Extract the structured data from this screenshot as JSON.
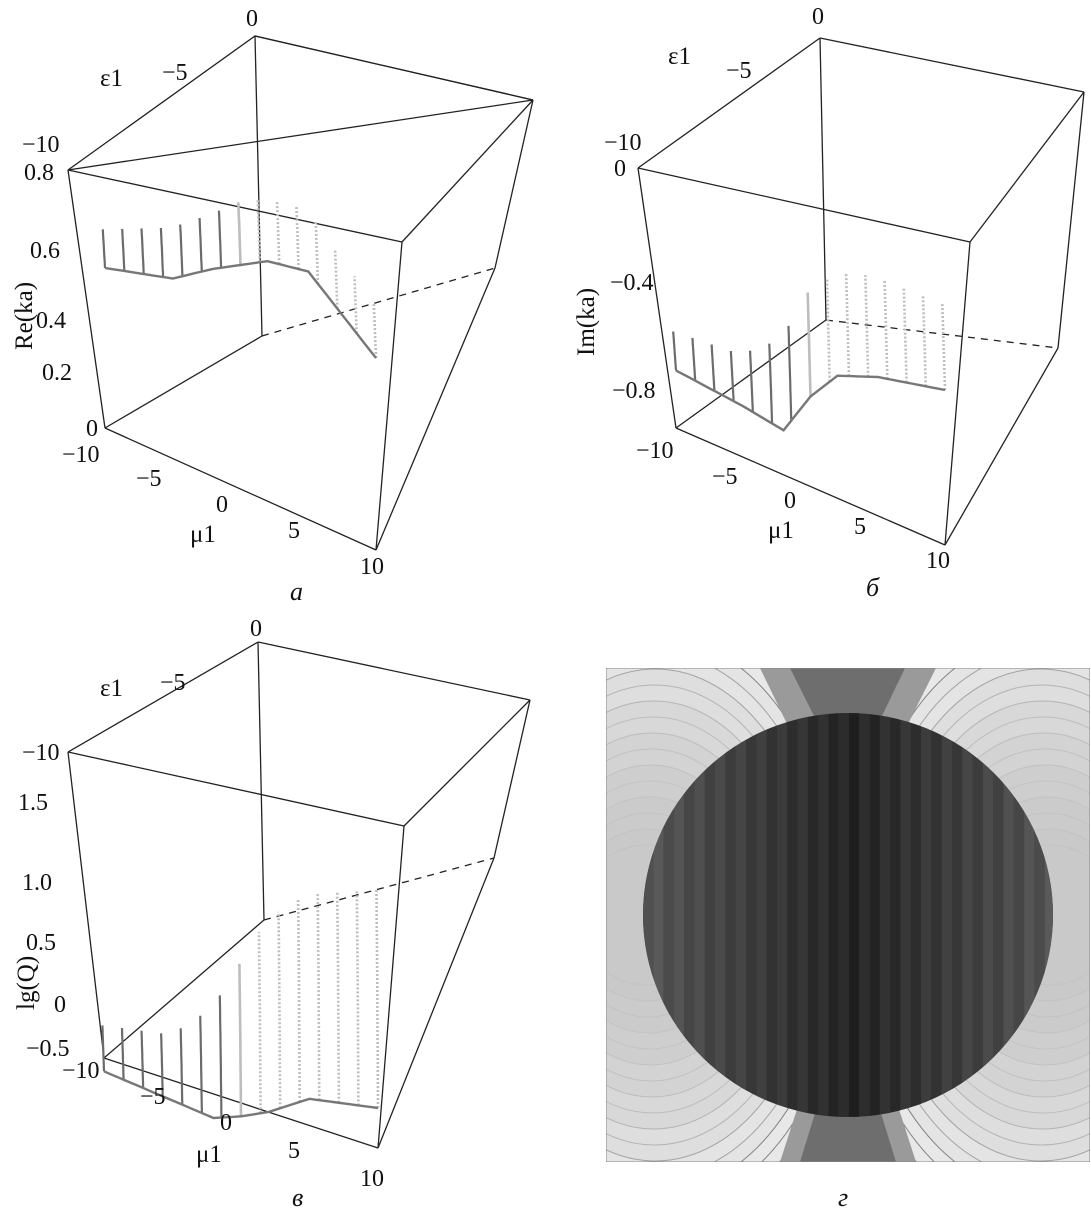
{
  "figure": {
    "panels": [
      {
        "caption": "а",
        "zlabel": "Re(ka)",
        "elabel": "ε1",
        "mlabel": "μ1",
        "zticks": [
          "0.8",
          "0.6",
          "0.4",
          "0.2",
          "0"
        ],
        "eticks": [
          "0",
          "−5",
          "−10"
        ],
        "mticks": [
          "−10",
          "−5",
          "0",
          "5",
          "10"
        ]
      },
      {
        "caption": "б",
        "zlabel": "Im(ka)",
        "elabel": "ε1",
        "mlabel": "μ1",
        "zticks": [
          "0",
          "−0.4",
          "−0.8"
        ],
        "eticks": [
          "0",
          "−5",
          "−10"
        ],
        "mticks": [
          "−10",
          "−5",
          "0",
          "5",
          "10"
        ]
      },
      {
        "caption": "в",
        "zlabel": "lg(Q)",
        "elabel": "ε1",
        "mlabel": "μ1",
        "zticks": [
          "1.5",
          "1.0",
          "0.5",
          "0",
          "−0.5"
        ],
        "eticks": [
          "0",
          "−5",
          "−10"
        ],
        "mticks": [
          "−10",
          "−5",
          "0",
          "5",
          "10"
        ]
      },
      {
        "caption": "г"
      }
    ]
  },
  "chart_data": [
    {
      "type": "surface3d",
      "title": "",
      "xlabel": "μ1",
      "ylabel": "ε1",
      "zlabel": "Re(ka)",
      "xlim": [
        -10,
        10
      ],
      "ylim": [
        -10,
        0
      ],
      "zlim": [
        0,
        0.8
      ],
      "series": [
        {
          "x_mu": [
            -10,
            -5,
            -2,
            0,
            2,
            5,
            10
          ],
          "eps": 0,
          "values": [
            0.5,
            0.55,
            0.62,
            0.66,
            0.7,
            0.72,
            0.58
          ]
        },
        {
          "x_mu": [
            -10,
            -5,
            -2,
            0,
            2,
            5,
            10
          ],
          "eps": -5,
          "values": [
            0.5,
            0.57,
            0.64,
            0.7,
            0.74,
            0.76,
            0.6
          ]
        },
        {
          "x_mu": [
            -10,
            -5,
            -2,
            0,
            2,
            5,
            10
          ],
          "eps": -10,
          "values": [
            0.5,
            0.58,
            0.66,
            0.72,
            0.76,
            0.78,
            0.62
          ]
        }
      ]
    },
    {
      "type": "surface3d",
      "title": "",
      "xlabel": "μ1",
      "ylabel": "ε1",
      "zlabel": "Im(ka)",
      "xlim": [
        -10,
        10
      ],
      "ylim": [
        -10,
        0
      ],
      "zlim": [
        -0.8,
        0
      ],
      "series": [
        {
          "x_mu": [
            -10,
            -5,
            -2,
            0,
            2,
            5,
            10
          ],
          "eps": 0,
          "values": [
            -0.5,
            -0.52,
            -0.54,
            -0.4,
            -0.3,
            -0.25,
            -0.2
          ]
        },
        {
          "x_mu": [
            -10,
            -5,
            -2,
            0,
            2,
            5,
            10
          ],
          "eps": -5,
          "values": [
            -0.5,
            -0.5,
            -0.45,
            -0.3,
            -0.2,
            -0.15,
            -0.12
          ]
        },
        {
          "x_mu": [
            -10,
            -5,
            -2,
            0,
            2,
            5,
            10
          ],
          "eps": -10,
          "values": [
            -0.5,
            -0.48,
            -0.38,
            -0.2,
            -0.1,
            -0.06,
            -0.05
          ]
        }
      ]
    },
    {
      "type": "surface3d",
      "title": "",
      "xlabel": "μ1",
      "ylabel": "ε1",
      "zlabel": "lg(Q)",
      "xlim": [
        -10,
        10
      ],
      "ylim": [
        -10,
        0
      ],
      "zlim": [
        -0.5,
        1.75
      ],
      "series": [
        {
          "x_mu": [
            -10,
            -5,
            -2,
            0,
            2,
            5,
            10
          ],
          "eps": 0,
          "values": [
            -0.3,
            -0.35,
            -0.38,
            -0.3,
            -0.2,
            0.0,
            0.1
          ]
        },
        {
          "x_mu": [
            -10,
            -5,
            -2,
            0,
            2,
            5,
            10
          ],
          "eps": -5,
          "values": [
            -0.3,
            -0.25,
            -0.1,
            0.2,
            0.5,
            0.8,
            0.95
          ]
        },
        {
          "x_mu": [
            -10,
            -5,
            -2,
            0,
            2,
            5,
            10
          ],
          "eps": -10,
          "values": [
            -0.3,
            -0.2,
            0.1,
            0.5,
            0.9,
            1.2,
            1.4
          ]
        }
      ]
    },
    {
      "type": "heatmap",
      "title": "",
      "description_levels": 8
    }
  ]
}
